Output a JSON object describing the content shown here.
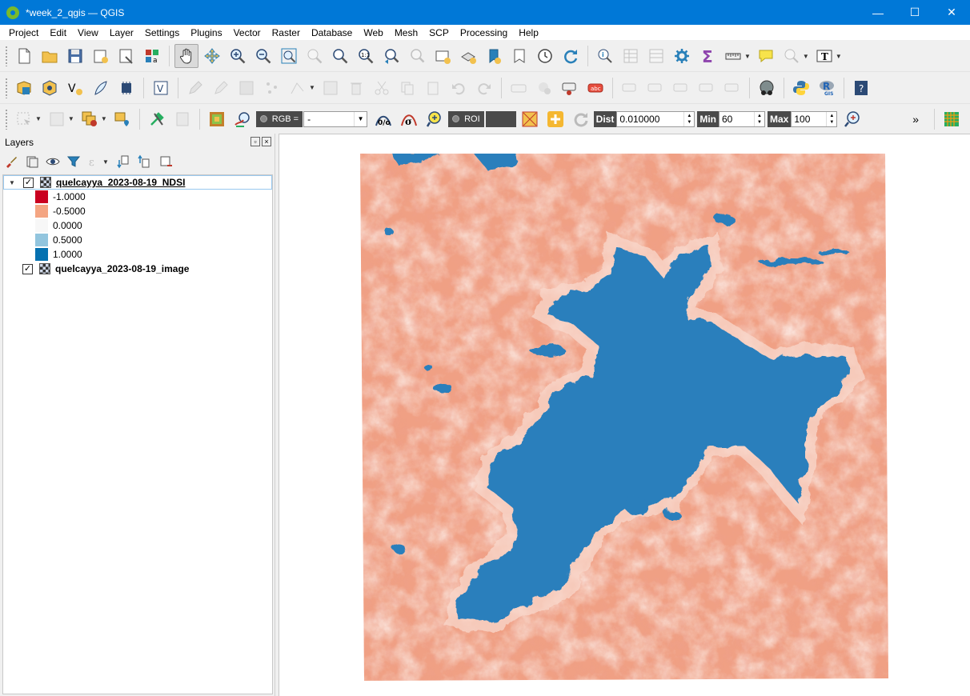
{
  "window": {
    "title": "*week_2_qgis — QGIS",
    "minimize": "—",
    "maximize": "☐",
    "close": "✕"
  },
  "menu": [
    "Project",
    "Edit",
    "View",
    "Layer",
    "Settings",
    "Plugins",
    "Vector",
    "Raster",
    "Database",
    "Web",
    "Mesh",
    "SCP",
    "Processing",
    "Help"
  ],
  "scp_toolbar": {
    "rgb_label": "RGB =",
    "rgb_value": "-",
    "roi_label": "ROI",
    "dist_label": "Dist",
    "dist_value": "0.010000",
    "min_label": "Min",
    "min_value": "60",
    "max_label": "Max",
    "max_value": "100",
    "overflow": "»"
  },
  "layers_panel": {
    "title": "Layers",
    "layers": [
      {
        "name": "quelcayya_2023-08-19_NDSI",
        "checked": "✓",
        "expanded": "▼",
        "legend": [
          {
            "label": "-1.0000",
            "color": "#ca0020"
          },
          {
            "label": "-0.5000",
            "color": "#f4a582"
          },
          {
            "label": "0.0000",
            "color": "#f7f7f7"
          },
          {
            "label": "0.5000",
            "color": "#92c5de"
          },
          {
            "label": "1.0000",
            "color": "#0571b0"
          }
        ]
      },
      {
        "name": "quelcayya_2023-08-19_image",
        "checked": "✓"
      }
    ]
  },
  "map": {
    "land_color": "#f0a084",
    "snow_color": "#2b7fbc",
    "light_color": "#f9d8cc"
  }
}
